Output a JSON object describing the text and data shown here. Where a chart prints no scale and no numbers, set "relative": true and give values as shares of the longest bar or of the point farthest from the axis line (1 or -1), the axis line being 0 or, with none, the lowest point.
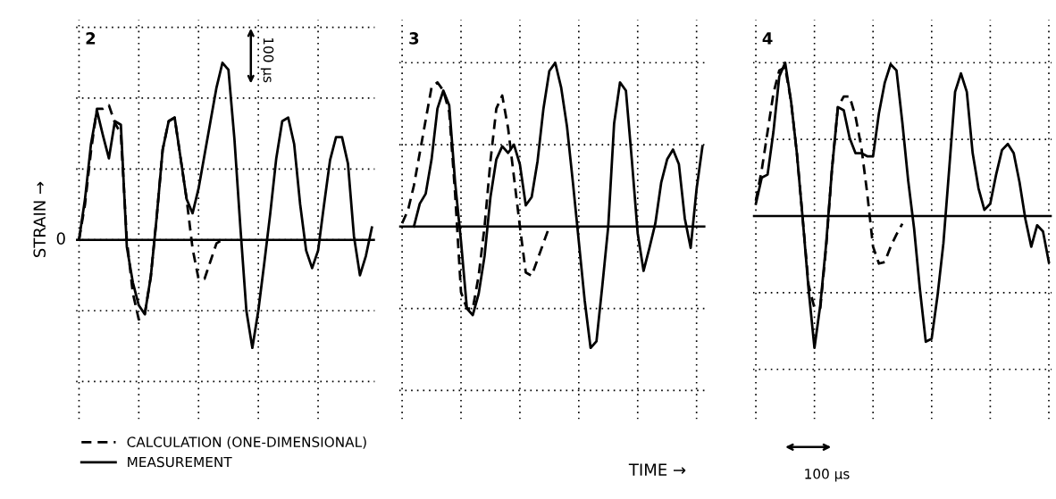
{
  "chart_data": [
    {
      "type": "line",
      "title": "2",
      "ylabel": "STRAIN →",
      "relative": true,
      "grid": true,
      "legend": "bottom left",
      "tick_labels": false,
      "annotations": [
        "0",
        "100 µs"
      ],
      "categories": [
        null,
        null,
        null,
        null,
        null,
        null,
        null,
        null,
        null,
        null,
        null,
        null,
        null,
        null,
        null,
        null,
        null,
        null,
        null,
        null,
        null,
        null,
        null,
        null,
        null,
        null,
        null,
        null,
        null,
        null,
        null,
        null,
        null,
        null,
        null,
        null,
        null,
        null,
        null,
        null,
        null,
        null,
        null,
        null,
        null,
        null,
        null,
        null,
        null,
        null
      ],
      "series": [
        {
          "name": "CALCULATION (ONE-DIMENSIONAL)",
          "color": "#000000",
          "line_style": "dashed",
          "values": [
            0,
            0.2,
            0.5,
            0.74,
            0.74,
            0.76,
            0.66,
            0.6,
            0.0,
            -0.3,
            -0.45,
            -0.42,
            -0.21,
            0.13,
            0.51,
            0.67,
            0.69,
            0.46,
            0.23,
            -0.05,
            -0.22,
            -0.22,
            -0.12,
            -0.02,
            0.0,
            null,
            null,
            null,
            null,
            null,
            null,
            null,
            null,
            null,
            null,
            null,
            null,
            null,
            null,
            null,
            null,
            null,
            null,
            null,
            null,
            null,
            null,
            null,
            null,
            null
          ]
        },
        {
          "name": "MEASUREMENT",
          "color": "#000000",
          "line_style": "solid",
          "values": [
            0,
            0.23,
            0.54,
            0.73,
            0.59,
            0.46,
            0.67,
            0.65,
            -0.04,
            -0.24,
            -0.37,
            -0.42,
            -0.21,
            0.13,
            0.51,
            0.67,
            0.69,
            0.46,
            0.23,
            0.15,
            0.29,
            0.48,
            0.67,
            0.86,
            1.0,
            0.96,
            0.57,
            0.07,
            -0.4,
            -0.61,
            -0.4,
            -0.13,
            0.15,
            0.46,
            0.67,
            0.69,
            0.54,
            0.2,
            -0.06,
            -0.16,
            -0.06,
            0.2,
            0.45,
            0.58,
            0.58,
            0.43,
            0.02,
            -0.2,
            -0.09,
            0.07
          ]
        }
      ]
    },
    {
      "type": "line",
      "title": "3",
      "xlabel": "TIME →",
      "relative": true,
      "grid": true,
      "tick_labels": false,
      "categories": [
        null,
        null,
        null,
        null,
        null,
        null,
        null,
        null,
        null,
        null,
        null,
        null,
        null,
        null,
        null,
        null,
        null,
        null,
        null,
        null,
        null,
        null,
        null,
        null,
        null,
        null,
        null,
        null,
        null,
        null,
        null,
        null,
        null,
        null,
        null,
        null,
        null,
        null,
        null,
        null,
        null,
        null,
        null,
        null,
        null,
        null,
        null,
        null,
        null,
        null,
        null,
        null
      ],
      "series": [
        {
          "color": "#000000",
          "line_style": "dashed",
          "values": [
            0.02,
            0.1,
            0.25,
            0.45,
            0.65,
            0.85,
            0.88,
            0.83,
            0.7,
            0.2,
            -0.4,
            -0.5,
            -0.5,
            -0.3,
            0.0,
            0.4,
            0.72,
            0.8,
            0.6,
            0.3,
            0.0,
            -0.28,
            -0.3,
            -0.2,
            -0.1,
            0.0,
            null,
            null,
            null,
            null,
            null,
            null,
            null,
            null,
            null,
            null,
            null,
            null,
            null,
            null,
            null,
            null,
            null,
            null,
            null,
            null,
            null,
            null,
            null,
            null,
            null,
            null
          ]
        },
        {
          "color": "#000000",
          "line_style": "solid",
          "values": [
            null,
            null,
            0,
            0.14,
            0.2,
            0.41,
            0.72,
            0.83,
            0.74,
            0.27,
            -0.09,
            -0.5,
            -0.54,
            -0.41,
            -0.18,
            0.18,
            0.41,
            0.49,
            0.45,
            0.5,
            0.38,
            0.13,
            0.18,
            0.4,
            0.72,
            0.95,
            1.0,
            0.85,
            0.61,
            0.27,
            -0.09,
            -0.45,
            -0.74,
            -0.7,
            -0.36,
            0,
            0.63,
            0.88,
            0.83,
            0.41,
            -0.04,
            -0.27,
            -0.13,
            0.02,
            0.27,
            0.41,
            0.47,
            0.38,
            0.05,
            -0.13,
            0.23,
            0.49
          ]
        }
      ]
    },
    {
      "type": "line",
      "title": "4",
      "relative": true,
      "grid": true,
      "tick_labels": false,
      "annotations": [
        "100 µs"
      ],
      "categories": [
        null,
        null,
        null,
        null,
        null,
        null,
        null,
        null,
        null,
        null,
        null,
        null,
        null,
        null,
        null,
        null,
        null,
        null,
        null,
        null,
        null,
        null,
        null,
        null,
        null,
        null,
        null,
        null,
        null,
        null,
        null,
        null,
        null,
        null,
        null,
        null,
        null,
        null,
        null,
        null,
        null,
        null,
        null,
        null,
        null,
        null,
        null,
        null,
        null,
        null,
        null
      ],
      "series": [
        {
          "color": "#000000",
          "line_style": "dashed",
          "values": [
            0.1,
            0.3,
            0.55,
            0.8,
            0.95,
            0.97,
            0.75,
            0.41,
            -0.02,
            -0.45,
            -0.6,
            -0.6,
            -0.2,
            0.31,
            0.71,
            0.78,
            0.78,
            0.65,
            0.45,
            0.15,
            -0.2,
            -0.31,
            -0.3,
            -0.2,
            -0.12,
            -0.05,
            null,
            null,
            null,
            null,
            null,
            null,
            null,
            null,
            null,
            null,
            null,
            null,
            null,
            null,
            null,
            null,
            null,
            null,
            null,
            null,
            null,
            null,
            null,
            null,
            null
          ]
        },
        {
          "color": "#000000",
          "line_style": "solid",
          "values": [
            0.08,
            0.25,
            0.27,
            0.55,
            0.91,
            1.0,
            0.75,
            0.41,
            -0.02,
            -0.48,
            -0.86,
            -0.58,
            -0.18,
            0.31,
            0.71,
            0.69,
            0.51,
            0.41,
            0.41,
            0.39,
            0.39,
            0.67,
            0.87,
            0.99,
            0.95,
            0.61,
            0.23,
            -0.08,
            -0.48,
            -0.82,
            -0.8,
            -0.52,
            -0.18,
            0.31,
            0.81,
            0.93,
            0.81,
            0.41,
            0.18,
            0.04,
            0.08,
            0.27,
            0.43,
            0.47,
            0.41,
            0.22,
            -0.02,
            -0.2,
            -0.06,
            -0.1,
            -0.3
          ]
        }
      ]
    }
  ]
}
